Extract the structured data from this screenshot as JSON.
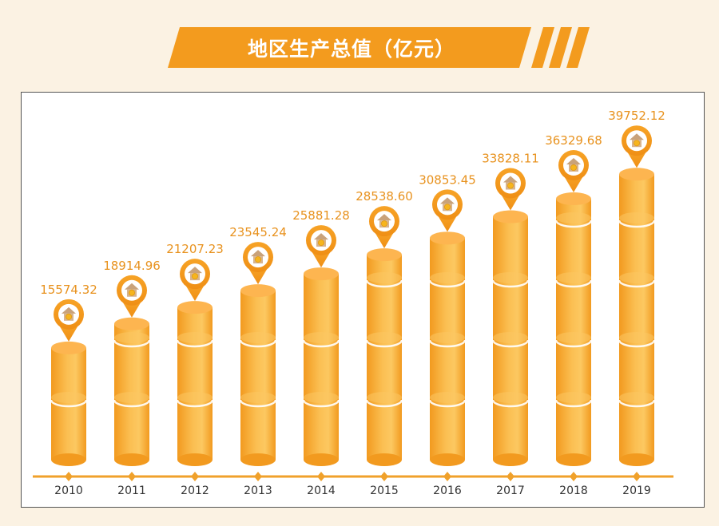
{
  "chart_data": {
    "type": "bar",
    "title": "地区生产总值（亿元）",
    "categories": [
      "2010",
      "2011",
      "2012",
      "2013",
      "2014",
      "2015",
      "2016",
      "2017",
      "2018",
      "2019"
    ],
    "values": [
      15574.32,
      18914.96,
      21207.23,
      23545.24,
      25881.28,
      28538.6,
      30853.45,
      33828.11,
      36329.68,
      39752.12
    ],
    "value_labels": [
      "15574.32",
      "18914.96",
      "21207.23",
      "23545.24",
      "25881.28",
      "28538.60",
      "30853.45",
      "33828.11",
      "36329.68",
      "39752.12"
    ],
    "xlabel": "",
    "ylabel": "",
    "ylim": [
      0,
      40000
    ],
    "grid": false,
    "legend": "none",
    "marker_icon": "house-coin-map-pin-icon",
    "colors": {
      "bar": "#f29a1f",
      "bar_light": "#fbc867",
      "bar_top": "#fdb550",
      "label": "#e8921e",
      "axis": "#f0a12b",
      "banner": "#f39b1e",
      "background": "#fbf2e3"
    }
  }
}
